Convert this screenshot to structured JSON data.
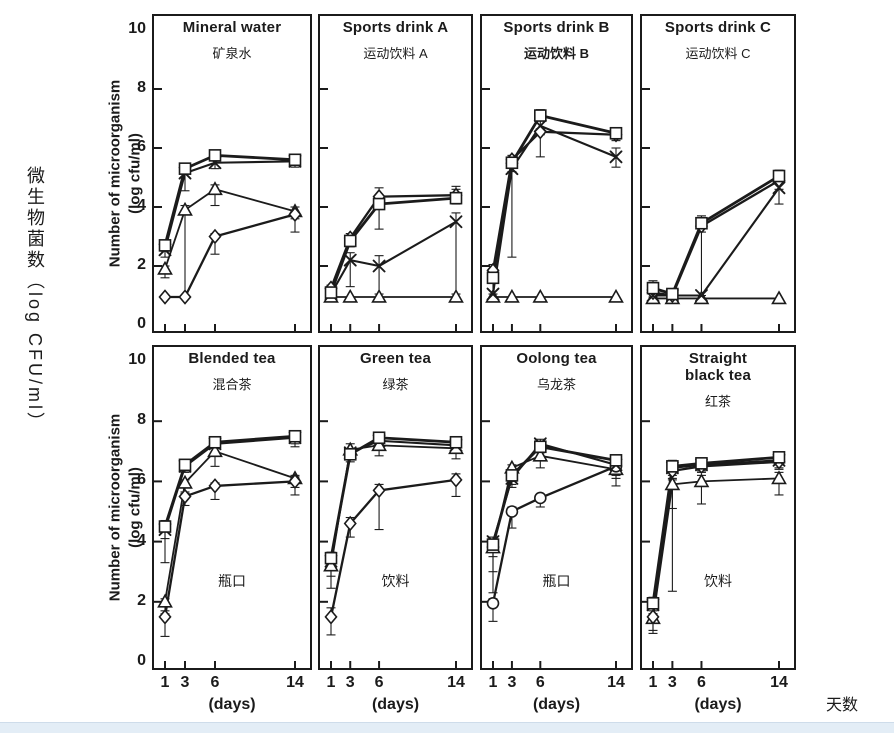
{
  "figure": {
    "y_axis_label_cn": "微生物菌数（log CFU/ml）",
    "x_axis_label_cn": "天数",
    "y_axis_label_en_line1": "Number of microorganism",
    "y_axis_label_en_line2": "(log cfu/ml)",
    "x_axis_unit": "(days)",
    "x_ticks": [
      "1",
      "3",
      "6",
      "14"
    ],
    "y_ticks": [
      "0",
      "2",
      "4",
      "6",
      "8",
      "10"
    ],
    "ink_color": "#1b1b1b",
    "bottom_bar_color": "#e3edf6"
  },
  "chart_data": {
    "type": "line",
    "x": [
      1,
      3,
      6,
      14
    ],
    "xlabel": "(days)",
    "ylabel": "Number of microorganism (log cfu/ml)",
    "ylim": [
      0,
      10
    ],
    "grid": false,
    "legend": "none (marker-coded series: open square, diagonal cross, open triangle, open diamond/circle)",
    "panels": [
      {
        "title": "Mineral water",
        "subtitle": "矿泉水",
        "series": [
          {
            "name": "square",
            "marker": "square",
            "values": [
              2.7,
              5.3,
              5.75,
              5.6
            ],
            "err_down": [
              0.2,
              0.15,
              0.1,
              0.15
            ],
            "err_up": [
              0.15,
              0.15,
              0.1,
              0.1
            ]
          },
          {
            "name": "cross",
            "marker": "cross",
            "values": [
              2.55,
              5.15,
              5.5,
              5.55
            ],
            "err_down": [
              0.25,
              0.6,
              0.2,
              0.2
            ],
            "err_up": [
              0.1,
              0.1,
              0.15,
              0.1
            ]
          },
          {
            "name": "triangle",
            "marker": "triangle",
            "values": [
              1.9,
              3.9,
              4.6,
              3.85
            ],
            "err_down": [
              0.3,
              2.9,
              0.55,
              0.7
            ],
            "err_up": [
              0.1,
              0.15,
              0.15,
              0.15
            ]
          },
          {
            "name": "diamond",
            "marker": "diamond",
            "values": [
              0.95,
              0.95,
              3.0,
              3.75
            ],
            "err_down": [
              0.05,
              0.05,
              0.6,
              0.15
            ],
            "err_up": [
              0.05,
              0.05,
              0.1,
              0.1
            ]
          }
        ]
      },
      {
        "title": "Sports drink A",
        "subtitle": "运动饮料 A",
        "series": [
          {
            "name": "square",
            "marker": "square",
            "values": [
              1.1,
              2.85,
              4.1,
              4.3
            ],
            "err_down": [
              0.1,
              0.2,
              0.85,
              0.2
            ],
            "err_up": [
              0.1,
              0.15,
              0.1,
              0.3
            ]
          },
          {
            "name": "cross",
            "marker": "cross",
            "values": [
              1.05,
              2.2,
              2.0,
              3.5
            ],
            "err_down": [
              0.1,
              0.9,
              0.95,
              2.45
            ],
            "err_up": [
              0.05,
              0.25,
              0.35,
              0.3
            ]
          },
          {
            "name": "triangle",
            "marker": "triangle",
            "values": [
              0.95,
              0.95,
              0.95,
              0.95
            ],
            "err_down": [
              0.05,
              0.05,
              0.05,
              0.05
            ],
            "err_up": [
              0,
              0,
              0,
              0
            ]
          },
          {
            "name": "diamond",
            "marker": "diamond",
            "values": [
              1.25,
              2.95,
              4.35,
              4.4
            ],
            "err_down": [
              0.15,
              0.2,
              0.2,
              0.2
            ],
            "err_up": [
              0.1,
              0.15,
              0.3,
              0.3
            ]
          }
        ]
      },
      {
        "title": "Sports drink B",
        "subtitle": "运动饮料 B",
        "subtitle_bold": true,
        "series": [
          {
            "name": "square",
            "marker": "square",
            "values": [
              1.6,
              5.5,
              7.1,
              6.5
            ],
            "err_down": [
              0.55,
              0.3,
              0.15,
              0.2
            ],
            "err_up": [
              0.2,
              0.2,
              0.2,
              0.15
            ]
          },
          {
            "name": "cross",
            "marker": "cross",
            "values": [
              1.05,
              5.3,
              6.75,
              5.7
            ],
            "err_down": [
              0.1,
              3.0,
              0.3,
              0.35
            ],
            "err_up": [
              0.05,
              0.1,
              0.2,
              0.3
            ]
          },
          {
            "name": "triangle",
            "marker": "triangle",
            "values": [
              0.95,
              0.95,
              0.95,
              0.95
            ],
            "err_down": [
              0.05,
              0.05,
              0.05,
              0.05
            ],
            "err_up": [
              0,
              0,
              0,
              0
            ]
          },
          {
            "name": "diamond",
            "marker": "diamond",
            "values": [
              1.85,
              5.6,
              6.55,
              6.45
            ],
            "err_down": [
              0.3,
              0.2,
              0.85,
              0.2
            ],
            "err_up": [
              0.2,
              0.15,
              0.1,
              0.15
            ]
          }
        ]
      },
      {
        "title": "Sports drink C",
        "subtitle": "运动饮料 C",
        "series": [
          {
            "name": "square",
            "marker": "square",
            "values": [
              1.25,
              1.05,
              3.45,
              5.05
            ],
            "err_down": [
              0.2,
              0.1,
              0.3,
              0.2
            ],
            "err_up": [
              0.25,
              0.1,
              0.25,
              0.2
            ]
          },
          {
            "name": "cross",
            "marker": "cross",
            "values": [
              1.0,
              1.0,
              1.0,
              4.65
            ],
            "err_down": [
              0.1,
              0.05,
              0.05,
              0.55
            ],
            "err_up": [
              0.05,
              0.05,
              0.05,
              0.2
            ]
          },
          {
            "name": "triangle",
            "marker": "triangle",
            "values": [
              0.9,
              0.9,
              0.9,
              0.9
            ],
            "err_down": [
              0.05,
              0.05,
              0.05,
              0.05
            ],
            "err_up": [
              0,
              0,
              0,
              0
            ]
          },
          {
            "name": "diamond",
            "marker": "diamond",
            "values": [
              1.1,
              1.0,
              3.35,
              4.9
            ],
            "err_down": [
              0.15,
              0.1,
              2.35,
              0.3
            ],
            "err_up": [
              0.1,
              0.05,
              0.15,
              0.15
            ]
          }
        ]
      },
      {
        "title": "Blended tea",
        "subtitle": "混合茶",
        "annotation": "瓶口",
        "series": [
          {
            "name": "square",
            "marker": "square",
            "values": [
              4.5,
              6.55,
              7.3,
              7.5
            ],
            "err_down": [
              1.2,
              0.2,
              0.2,
              0.35
            ],
            "err_up": [
              0.2,
              0.15,
              0.1,
              0.15
            ]
          },
          {
            "name": "cross",
            "marker": "cross",
            "values": [
              4.4,
              6.5,
              7.25,
              7.45
            ],
            "err_down": [
              0.3,
              0.2,
              0.15,
              0.2
            ],
            "err_up": [
              0.1,
              0.1,
              0.1,
              0.1
            ]
          },
          {
            "name": "triangle",
            "marker": "triangle",
            "values": [
              2.0,
              5.95,
              7.0,
              6.1
            ],
            "err_down": [
              0.3,
              0.3,
              0.5,
              0.55
            ],
            "err_up": [
              0.1,
              0.1,
              0.2,
              0.1
            ]
          },
          {
            "name": "diamond",
            "marker": "diamond",
            "values": [
              1.5,
              5.5,
              5.85,
              6.0
            ],
            "err_down": [
              0.65,
              0.3,
              0.45,
              0.2
            ],
            "err_up": [
              0.1,
              0.1,
              0.1,
              0.15
            ]
          }
        ]
      },
      {
        "title": "Green tea",
        "subtitle": "绿茶",
        "annotation": "饮料",
        "series": [
          {
            "name": "square",
            "marker": "square",
            "values": [
              3.45,
              6.9,
              7.45,
              7.3
            ],
            "err_down": [
              1.0,
              0.25,
              0.15,
              0.2
            ],
            "err_up": [
              0.2,
              0.15,
              0.15,
              0.1
            ]
          },
          {
            "name": "cross",
            "marker": "cross",
            "values": [
              3.35,
              6.95,
              7.35,
              7.2
            ],
            "err_down": [
              0.3,
              0.15,
              0.1,
              0.15
            ],
            "err_up": [
              0.1,
              0.1,
              0.1,
              0.1
            ]
          },
          {
            "name": "triangle",
            "marker": "triangle",
            "values": [
              3.2,
              7.05,
              7.2,
              7.1
            ],
            "err_down": [
              0.35,
              0.15,
              0.35,
              0.35
            ],
            "err_up": [
              0.1,
              0.2,
              0.1,
              0.1
            ]
          },
          {
            "name": "diamond",
            "marker": "diamond",
            "values": [
              1.5,
              4.6,
              5.7,
              6.05
            ],
            "err_down": [
              0.6,
              0.45,
              1.3,
              0.55
            ],
            "err_up": [
              0.3,
              0.2,
              0.2,
              0.2
            ]
          }
        ]
      },
      {
        "title": "Oolong tea",
        "subtitle": "乌龙茶",
        "annotation": "瓶口",
        "series": [
          {
            "name": "square",
            "marker": "square",
            "values": [
              3.9,
              6.2,
              7.15,
              6.7
            ],
            "err_down": [
              0.4,
              0.3,
              0.15,
              0.3
            ],
            "err_up": [
              0.1,
              0.15,
              0.1,
              0.15
            ]
          },
          {
            "name": "cross",
            "marker": "cross",
            "values": [
              4.0,
              6.1,
              7.25,
              6.55
            ],
            "err_down": [
              1.0,
              0.3,
              0.2,
              0.45
            ],
            "err_up": [
              0.15,
              0.2,
              0.15,
              0.2
            ]
          },
          {
            "name": "triangle",
            "marker": "triangle",
            "values": [
              3.8,
              6.45,
              6.85,
              6.4
            ],
            "err_down": [
              1.5,
              0.45,
              0.4,
              0.55
            ],
            "err_up": [
              0.1,
              0.1,
              0.1,
              0.1
            ]
          },
          {
            "name": "circle",
            "marker": "circle",
            "values": [
              1.95,
              5.0,
              5.45,
              6.5
            ],
            "err_down": [
              0.6,
              0.55,
              0.3,
              0.3
            ],
            "err_up": [
              0.15,
              0.15,
              0.1,
              0.1
            ]
          }
        ]
      },
      {
        "title": "Straight\nblack tea",
        "subtitle": "红茶",
        "annotation": "饮料",
        "series": [
          {
            "name": "square",
            "marker": "square",
            "values": [
              1.95,
              6.5,
              6.6,
              6.8
            ],
            "err_down": [
              0.35,
              0.3,
              0.2,
              0.25
            ],
            "err_up": [
              0.2,
              0.2,
              0.15,
              0.15
            ]
          },
          {
            "name": "cross",
            "marker": "cross",
            "values": [
              1.9,
              6.45,
              6.55,
              6.7
            ],
            "err_down": [
              0.2,
              4.1,
              0.2,
              0.3
            ],
            "err_up": [
              0.1,
              0.1,
              0.1,
              0.15
            ]
          },
          {
            "name": "triangle",
            "marker": "triangle",
            "values": [
              1.45,
              5.9,
              6.0,
              6.1
            ],
            "err_down": [
              0.5,
              0.8,
              0.75,
              0.55
            ],
            "err_up": [
              0.15,
              0.2,
              0.2,
              0.2
            ]
          },
          {
            "name": "diamond",
            "marker": "diamond",
            "values": [
              1.5,
              6.35,
              6.5,
              6.65
            ],
            "err_down": [
              0.45,
              0.3,
              0.2,
              0.2
            ],
            "err_up": [
              0.1,
              0.1,
              0.1,
              0.1
            ]
          }
        ]
      }
    ]
  }
}
